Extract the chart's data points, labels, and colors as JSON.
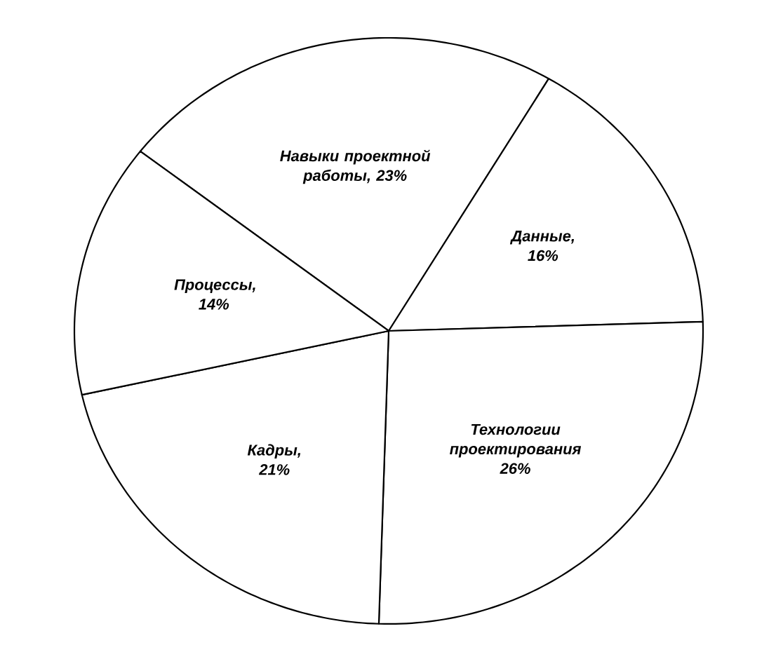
{
  "chart_data": {
    "type": "pie",
    "categories": [
      "Навыки проектной работы",
      "Данные",
      "Технологии проектирования",
      "Кадры",
      "Процессы"
    ],
    "values": [
      23,
      16,
      26,
      21,
      14
    ],
    "value_labels": [
      ", 23%",
      ", 16%",
      "26%",
      ", 21%",
      ", 14%"
    ],
    "colors": [
      "#ffffff",
      "#ffffff",
      "#ffffff",
      "#ffffff",
      "#ffffff"
    ]
  }
}
